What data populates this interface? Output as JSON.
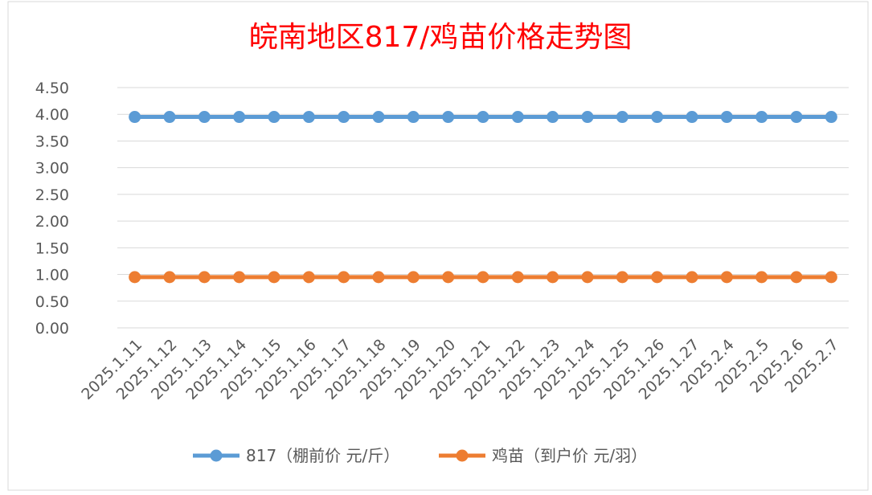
{
  "chart_data": {
    "type": "line",
    "title": "皖南地区817/鸡苗价格走势图",
    "xlabel": "",
    "ylabel": "",
    "categories": [
      "2025.1.11",
      "2025.1.12",
      "2025.1.13",
      "2025.1.14",
      "2025.1.15",
      "2025.1.16",
      "2025.1.17",
      "2025.1.18",
      "2025.1.19",
      "2025.1.20",
      "2025.1.21",
      "2025.1.22",
      "2025.1.23",
      "2025.1.24",
      "2025.1.25",
      "2025.1.26",
      "2025.1.27",
      "2025.2.4",
      "2025.2.5",
      "2025.2.6",
      "2025.2.7"
    ],
    "yticks": [
      "0.00",
      "0.50",
      "1.00",
      "1.50",
      "2.00",
      "2.50",
      "3.00",
      "3.50",
      "4.00",
      "4.50"
    ],
    "ylim": [
      0,
      4.5
    ],
    "grid": true,
    "legend": "bottom",
    "series": [
      {
        "name": "817（棚前价 元/斤）",
        "color": "#5b9bd5",
        "values": [
          3.95,
          3.95,
          3.95,
          3.95,
          3.95,
          3.95,
          3.95,
          3.95,
          3.95,
          3.95,
          3.95,
          3.95,
          3.95,
          3.95,
          3.95,
          3.95,
          3.95,
          3.95,
          3.95,
          3.95,
          3.95
        ]
      },
      {
        "name": "鸡苗（到户价 元/羽）",
        "color": "#ed7d31",
        "values": [
          0.95,
          0.95,
          0.95,
          0.95,
          0.95,
          0.95,
          0.95,
          0.95,
          0.95,
          0.95,
          0.95,
          0.95,
          0.95,
          0.95,
          0.95,
          0.95,
          0.95,
          0.95,
          0.95,
          0.95,
          0.95
        ]
      }
    ],
    "title_color": "#ff0000"
  }
}
